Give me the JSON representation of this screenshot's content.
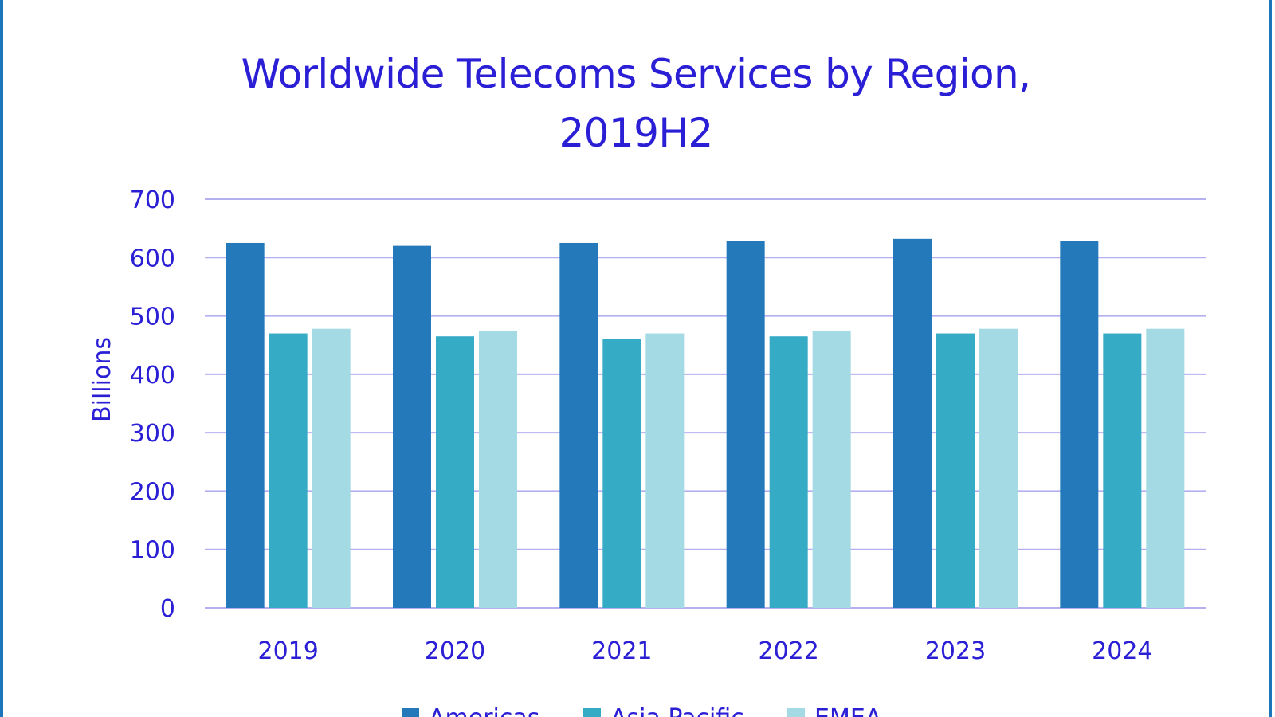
{
  "chart_data": {
    "type": "bar",
    "title": "Worldwide Telecoms Services by Region, 2019H2",
    "title_lines": [
      "Worldwide Telecoms Services by Region,",
      "2019H2"
    ],
    "ylabel": "Billions",
    "xlabel": "",
    "ylim": [
      0,
      700
    ],
    "yticks": [
      0,
      100,
      200,
      300,
      400,
      500,
      600,
      700
    ],
    "grid": true,
    "legend_position": "bottom",
    "categories": [
      "2019",
      "2020",
      "2021",
      "2022",
      "2023",
      "2024"
    ],
    "series": [
      {
        "name": "Americas",
        "color": "#2479ba",
        "values": [
          625,
          620,
          625,
          628,
          632,
          628
        ]
      },
      {
        "name": "Asia Pacific",
        "color": "#35abc5",
        "values": [
          470,
          465,
          460,
          465,
          470,
          470
        ]
      },
      {
        "name": "EMEA",
        "color": "#a3dae4",
        "values": [
          478,
          474,
          470,
          474,
          478,
          478
        ]
      }
    ],
    "colors": {
      "text": "#2b1fd6",
      "grid": "#b4b0f0",
      "frame": "#1b75bb"
    }
  }
}
